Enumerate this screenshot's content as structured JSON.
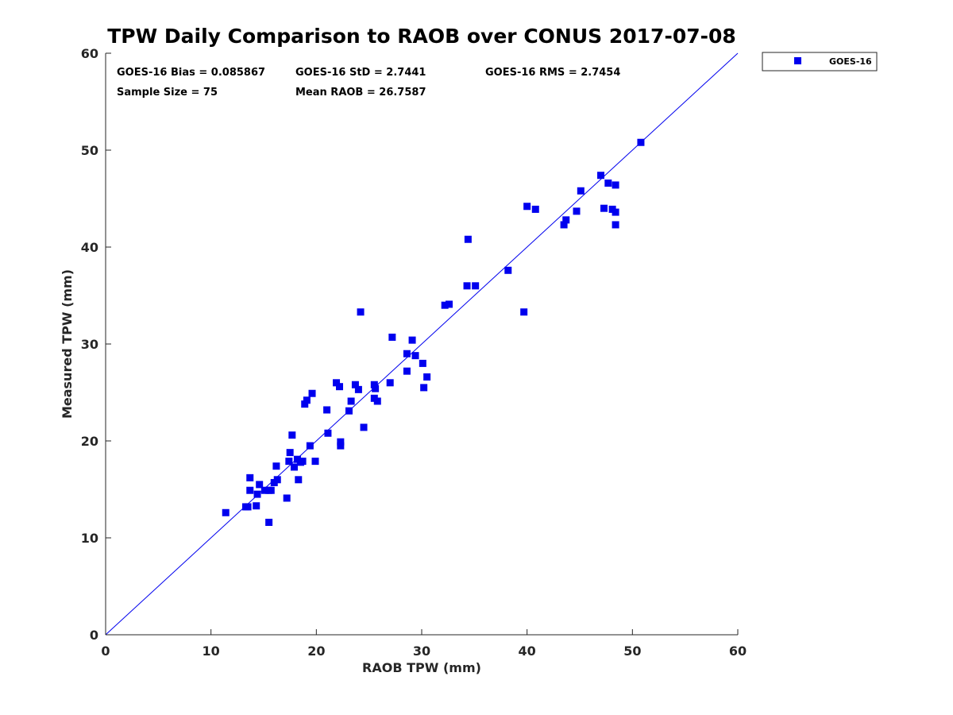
{
  "chart_data": {
    "type": "scatter",
    "title": "TPW Daily Comparison to RAOB over CONUS 2017-07-08",
    "xlabel": "RAOB TPW (mm)",
    "ylabel": "Measured TPW (mm)",
    "xlim": [
      0,
      60
    ],
    "ylim": [
      0,
      60
    ],
    "xticks": [
      "0",
      "10",
      "20",
      "30",
      "40",
      "50",
      "60"
    ],
    "yticks": [
      "0",
      "10",
      "20",
      "30",
      "40",
      "50",
      "60"
    ],
    "grid": false,
    "legend": "outside-top-right",
    "reference_line": "y = x",
    "stats": {
      "bias": "GOES-16 Bias = 0.085867",
      "std": "GOES-16 StD = 2.7441",
      "rms": "GOES-16 RMS = 2.7454",
      "sample": "Sample Size = 75",
      "mean": "Mean RAOB = 26.7587"
    },
    "series": [
      {
        "name": "GOES-16",
        "color": "#0000ee",
        "points": [
          [
            11.4,
            12.6
          ],
          [
            13.3,
            13.2
          ],
          [
            13.5,
            13.2
          ],
          [
            13.7,
            16.2
          ],
          [
            13.7,
            14.9
          ],
          [
            14.3,
            13.3
          ],
          [
            14.4,
            14.5
          ],
          [
            14.6,
            15.5
          ],
          [
            15.1,
            14.9
          ],
          [
            15.5,
            14.9
          ],
          [
            15.5,
            11.6
          ],
          [
            15.7,
            14.9
          ],
          [
            16.0,
            15.7
          ],
          [
            16.2,
            17.4
          ],
          [
            16.3,
            16.0
          ],
          [
            17.2,
            14.1
          ],
          [
            17.4,
            17.9
          ],
          [
            17.5,
            18.8
          ],
          [
            17.7,
            20.6
          ],
          [
            17.9,
            17.3
          ],
          [
            18.2,
            18.1
          ],
          [
            18.3,
            16.0
          ],
          [
            18.5,
            17.8
          ],
          [
            18.7,
            17.9
          ],
          [
            18.9,
            23.8
          ],
          [
            19.1,
            24.2
          ],
          [
            19.4,
            19.5
          ],
          [
            19.6,
            24.9
          ],
          [
            19.9,
            17.9
          ],
          [
            21.0,
            23.2
          ],
          [
            21.1,
            20.8
          ],
          [
            21.9,
            26.0
          ],
          [
            22.2,
            25.6
          ],
          [
            22.3,
            19.9
          ],
          [
            22.3,
            19.5
          ],
          [
            23.1,
            23.1
          ],
          [
            23.3,
            24.1
          ],
          [
            23.7,
            25.8
          ],
          [
            24.0,
            25.3
          ],
          [
            24.2,
            33.3
          ],
          [
            24.5,
            21.4
          ],
          [
            25.5,
            24.4
          ],
          [
            25.5,
            25.8
          ],
          [
            25.6,
            25.4
          ],
          [
            25.8,
            24.1
          ],
          [
            27.0,
            26.0
          ],
          [
            27.2,
            30.7
          ],
          [
            28.6,
            29.0
          ],
          [
            28.6,
            27.2
          ],
          [
            29.1,
            30.4
          ],
          [
            29.4,
            28.8
          ],
          [
            30.1,
            28.0
          ],
          [
            30.2,
            25.5
          ],
          [
            30.5,
            26.6
          ],
          [
            32.2,
            34.0
          ],
          [
            32.6,
            34.1
          ],
          [
            34.3,
            36.0
          ],
          [
            34.4,
            40.8
          ],
          [
            35.1,
            36.0
          ],
          [
            38.2,
            37.6
          ],
          [
            39.7,
            33.3
          ],
          [
            40.0,
            44.2
          ],
          [
            40.8,
            43.9
          ],
          [
            43.5,
            42.3
          ],
          [
            43.7,
            42.8
          ],
          [
            44.7,
            43.7
          ],
          [
            45.1,
            45.8
          ],
          [
            47.0,
            47.4
          ],
          [
            47.3,
            44.0
          ],
          [
            47.7,
            46.6
          ],
          [
            48.1,
            43.9
          ],
          [
            48.4,
            46.4
          ],
          [
            48.4,
            43.6
          ],
          [
            48.4,
            42.3
          ],
          [
            50.8,
            50.8
          ]
        ]
      }
    ]
  }
}
